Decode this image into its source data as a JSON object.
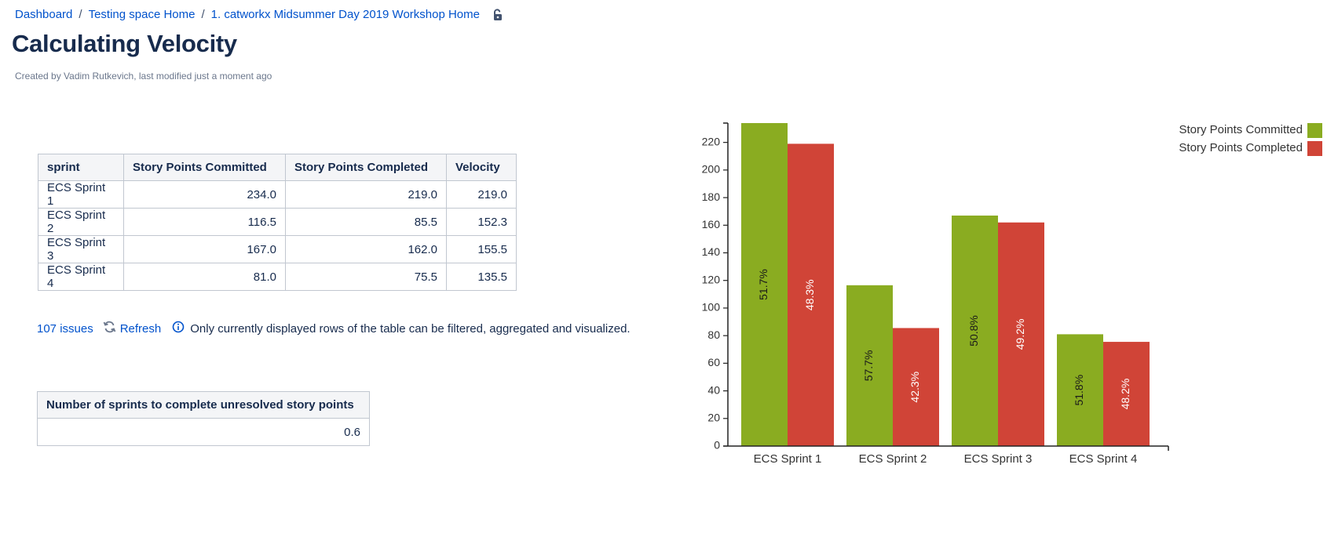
{
  "breadcrumb": {
    "items": [
      "Dashboard",
      "Testing space Home",
      "1. catworkx Midsummer Day 2019 Workshop Home"
    ],
    "separator": "/"
  },
  "page": {
    "title": "Calculating Velocity",
    "byline_prefix": "Created by ",
    "author": "Vadim Rutkevich",
    "byline_mid": ", last modified ",
    "modified": "just a moment ago"
  },
  "velocity_table": {
    "headers": [
      "sprint",
      "Story Points Committed",
      "Story Points Completed",
      "Velocity"
    ],
    "rows": [
      [
        "ECS Sprint 1",
        "234.0",
        "219.0",
        "219.0"
      ],
      [
        "ECS Sprint 2",
        "116.5",
        "85.5",
        "152.3"
      ],
      [
        "ECS Sprint 3",
        "167.0",
        "162.0",
        "155.5"
      ],
      [
        "ECS Sprint 4",
        "81.0",
        "75.5",
        "135.5"
      ]
    ]
  },
  "table_footer": {
    "issues": "107 issues",
    "refresh": "Refresh",
    "info": "Only currently displayed rows of the table can be filtered, aggregated and visualized."
  },
  "sprints_table": {
    "header": "Number of sprints to complete unresolved story points",
    "value": "0.6"
  },
  "colors": {
    "link": "#0052cc",
    "committed": "#8aac21",
    "completed": "#d04437",
    "text": "#172b4d"
  },
  "chart_data": {
    "type": "bar",
    "categories": [
      "ECS Sprint 1",
      "ECS Sprint 2",
      "ECS Sprint 3",
      "ECS Sprint 4"
    ],
    "series": [
      {
        "name": "Story Points Committed",
        "values": [
          234.0,
          116.5,
          167.0,
          81.0
        ],
        "labels": [
          "51.7%",
          "57.7%",
          "50.8%",
          "51.8%"
        ]
      },
      {
        "name": "Story Points Completed",
        "values": [
          219.0,
          85.5,
          162.0,
          75.5
        ],
        "labels": [
          "48.3%",
          "42.3%",
          "49.2%",
          "48.2%"
        ]
      }
    ],
    "yticks": [
      0,
      20,
      40,
      60,
      80,
      100,
      120,
      140,
      160,
      180,
      200,
      220
    ],
    "ylim": [
      0,
      234
    ],
    "legend": "top-right",
    "grid": false
  }
}
